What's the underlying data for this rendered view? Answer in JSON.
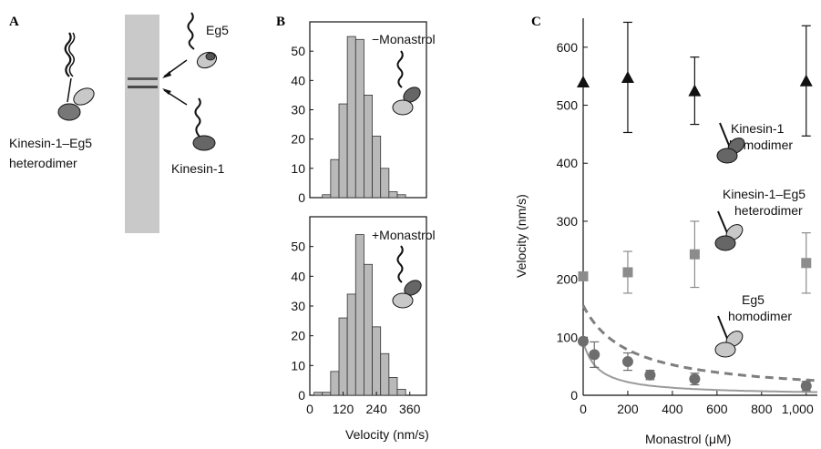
{
  "panels": {
    "a": "A",
    "b": "B",
    "c": "C"
  },
  "panel_a": {
    "heterodimer_label": [
      "Kinesin-1–Eg5",
      "heterodimer"
    ],
    "eg5_label": "Eg5",
    "kinesin_label": "Kinesin-1"
  },
  "colors": {
    "bar_fill": "#b9b9b9",
    "kinesin_marker": "#111111",
    "hetero_marker": "#8c8c8c",
    "eg5_marker": "#6e6e6e",
    "eg5_fit": "#9a9a9a",
    "dashed_fit": "#7f7f7f"
  },
  "chart_data": [
    {
      "type": "bar",
      "panel": "B-top",
      "annotation": "−Monastrol",
      "x_centers": [
        60,
        90,
        120,
        150,
        180,
        210,
        240,
        270,
        300,
        330,
        360
      ],
      "values": [
        1,
        13,
        32,
        55,
        54,
        35,
        21,
        10,
        2,
        1,
        0
      ],
      "xlim": [
        0,
        420
      ],
      "ylim": [
        0,
        60
      ],
      "yticks": [
        0,
        10,
        20,
        30,
        40,
        50
      ]
    },
    {
      "type": "bar",
      "panel": "B-bottom",
      "annotation": "+Monastrol",
      "x_centers": [
        0,
        30,
        60,
        90,
        120,
        150,
        180,
        210,
        240,
        270,
        300,
        330,
        360
      ],
      "values": [
        0,
        1,
        1,
        8,
        26,
        34,
        54,
        44,
        23,
        14,
        6,
        2,
        0
      ],
      "xlim": [
        0,
        420
      ],
      "ylim": [
        0,
        60
      ],
      "xticks": [
        0,
        120,
        240,
        360
      ],
      "yticks": [
        0,
        10,
        20,
        30,
        40,
        50
      ],
      "xlabel": "Velocity (nm/s)"
    },
    {
      "type": "scatter",
      "panel": "C",
      "xlabel": "Monastrol (μM)",
      "ylabel": "Velocity (nm/s)",
      "xlim": [
        0,
        1050
      ],
      "ylim": [
        0,
        650
      ],
      "xticks": [
        0,
        200,
        400,
        600,
        800,
        1000
      ],
      "xtick_labels": [
        "0",
        "200",
        "400",
        "600",
        "800",
        "1,000"
      ],
      "yticks": [
        0,
        100,
        200,
        300,
        400,
        500,
        600
      ],
      "series": [
        {
          "marker": "triangle",
          "x": [
            0,
            200,
            500,
            1000
          ],
          "y": [
            540,
            548,
            525,
            542
          ],
          "err": [
            0,
            95,
            58,
            95
          ],
          "label": [
            "Kinesin-1",
            "homodimer"
          ]
        },
        {
          "marker": "square",
          "x": [
            0,
            200,
            500,
            1000
          ],
          "y": [
            205,
            212,
            243,
            228
          ],
          "err": [
            0,
            36,
            57,
            52
          ],
          "label": [
            "Kinesin-1–Eg5",
            "heterodimer"
          ]
        },
        {
          "marker": "circle",
          "x": [
            0,
            50,
            200,
            300,
            500,
            1000
          ],
          "y": [
            93,
            70,
            58,
            35,
            28,
            16
          ],
          "err": [
            0,
            22,
            15,
            8,
            10,
            8
          ],
          "label": [
            "Eg5",
            "homodimer"
          ]
        }
      ],
      "fits": [
        {
          "style": "solid",
          "y0": 93,
          "k": 65
        },
        {
          "style": "dashed",
          "y0": 155,
          "k": 205
        }
      ]
    }
  ]
}
